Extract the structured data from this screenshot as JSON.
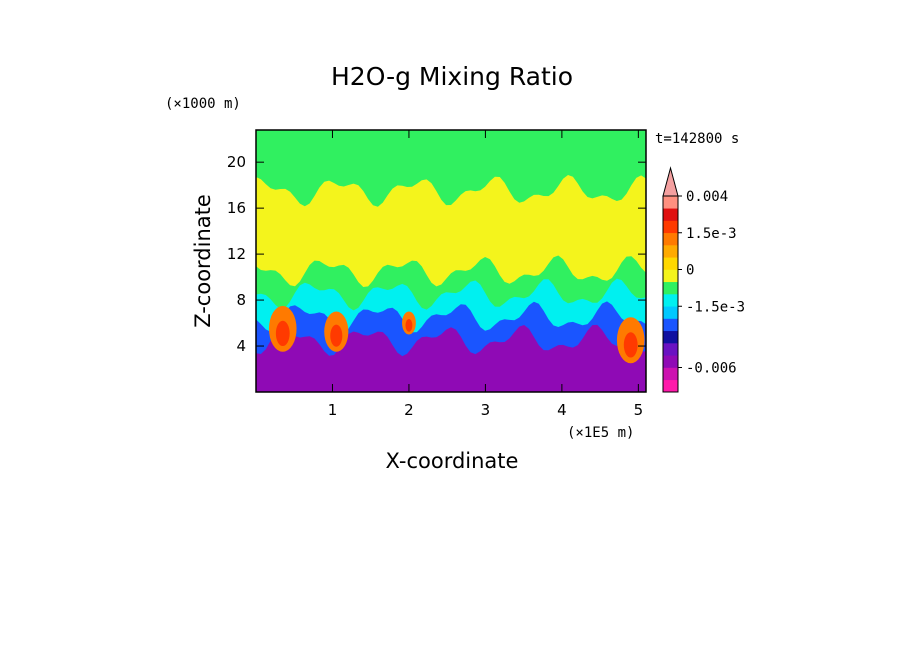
{
  "chart_data": {
    "type": "heatmap",
    "title": "H2O-g Mixing Ratio",
    "xlabel": "X-coordinate",
    "ylabel": "Z-coordinate",
    "x_unit": "(×1E5 m)",
    "y_unit": "(×1000 m)",
    "time_label": "t=142800 s",
    "xlim": [
      0,
      5.1
    ],
    "ylim": [
      0,
      22.8
    ],
    "x_ticks": [
      1,
      2,
      3,
      4,
      5
    ],
    "y_ticks": [
      4,
      8,
      12,
      16,
      20
    ],
    "x_tick_labels": [
      "1",
      "2",
      "3",
      "4",
      "5"
    ],
    "y_tick_labels": [
      "4",
      "8",
      "12",
      "16",
      "20"
    ],
    "colorbar": {
      "levels": [
        -0.0075,
        -0.006,
        -0.0045,
        -0.003,
        -0.0025,
        -0.002,
        -0.0015,
        -0.001,
        -0.0005,
        0,
        0.0005,
        0.001,
        0.0015,
        0.002,
        0.003,
        0.004
      ],
      "colors": [
        "#ff1aaa",
        "#cc11b0",
        "#8f0ab5",
        "#6a12c2",
        "#1010a0",
        "#1a55ff",
        "#00c8ff",
        "#00f0f0",
        "#30f060",
        "#f4f41c",
        "#ffd800",
        "#ffaa00",
        "#ff7a00",
        "#ff3a00",
        "#e01010",
        "#ff9080",
        "#f4a0a0"
      ],
      "tick_labels": [
        {
          "label": "0.004",
          "value": 0.004
        },
        {
          "label": "1.5e-3",
          "value": 0.0015
        },
        {
          "label": "0",
          "value": 0
        },
        {
          "label": "-1.5e-3",
          "value": -0.0015
        },
        {
          "label": "-0.006",
          "value": -0.006
        }
      ]
    },
    "layers": [
      {
        "z_top": 4.5,
        "level": -0.006,
        "color": "#8f0ab5"
      },
      {
        "z_top": 6.5,
        "level": -0.0025,
        "color": "#1a55ff"
      },
      {
        "z_top": 8.5,
        "level": -0.001,
        "color": "#00f0f0"
      },
      {
        "z_top": 10.5,
        "level": -0.0005,
        "color": "#30f060"
      },
      {
        "z_top": 17.5,
        "level": 0,
        "color": "#f4f41c"
      },
      {
        "z_top": 22.8,
        "level": -0.0005,
        "color": "#30f060"
      }
    ],
    "plumes": [
      {
        "x": 0.35,
        "z_low": 3.5,
        "z_high": 7.5,
        "level": 0.001
      },
      {
        "x": 1.05,
        "z_low": 3.5,
        "z_high": 7.0,
        "level": 0.001
      },
      {
        "x": 2.0,
        "z_low": 5.0,
        "z_high": 7.0,
        "level": 0.001
      },
      {
        "x": 4.9,
        "z_low": 2.5,
        "z_high": 6.5,
        "level": 0.001
      }
    ]
  }
}
